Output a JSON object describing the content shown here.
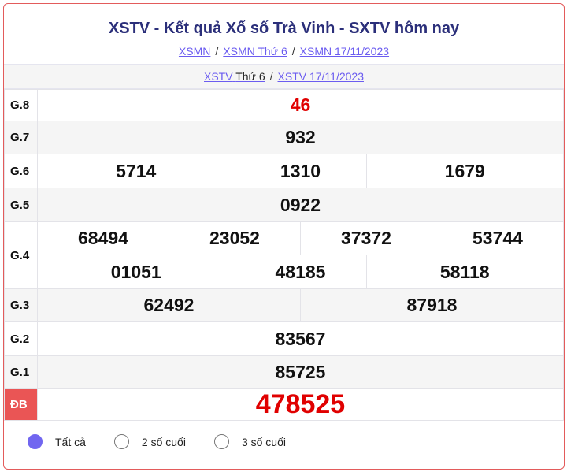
{
  "header": {
    "title": "XSTV - Kết quả Xổ số Trà Vinh - SXTV hôm nay",
    "breadcrumbs": [
      "XSMN",
      "XSMN Thứ 6",
      "XSMN 17/11/2023"
    ],
    "sub_links": {
      "link1_a": "XSTV",
      "link1_b": "Thứ 6",
      "link2": "XSTV 17/11/2023"
    },
    "separator": "/"
  },
  "prizes": {
    "g8": {
      "label": "G.8",
      "values": [
        "46"
      ]
    },
    "g7": {
      "label": "G.7",
      "values": [
        "932"
      ]
    },
    "g6": {
      "label": "G.6",
      "values": [
        "5714",
        "1310",
        "1679"
      ]
    },
    "g5": {
      "label": "G.5",
      "values": [
        "0922"
      ]
    },
    "g4": {
      "label": "G.4",
      "values": [
        "68494",
        "23052",
        "37372",
        "53744",
        "01051",
        "48185",
        "58118"
      ]
    },
    "g3": {
      "label": "G.3",
      "values": [
        "62492",
        "87918"
      ]
    },
    "g2": {
      "label": "G.2",
      "values": [
        "83567"
      ]
    },
    "g1": {
      "label": "G.1",
      "values": [
        "85725"
      ]
    },
    "db": {
      "label": "ĐB",
      "values": [
        "478525"
      ]
    }
  },
  "filter": {
    "options": [
      "Tất cả",
      "2 số cuối",
      "3 số cuối"
    ],
    "selected": "Tất cả"
  },
  "colors": {
    "accent": "#7166f0",
    "special": "#e00000",
    "border": "#e35b5b",
    "db_label_bg": "#ea5555"
  }
}
